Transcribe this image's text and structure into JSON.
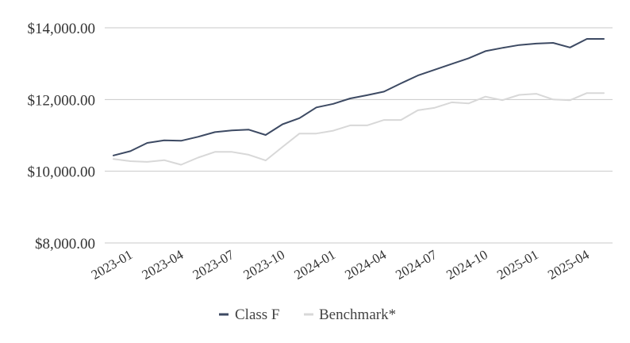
{
  "chart_data": {
    "type": "line",
    "title": "",
    "xlabel": "",
    "ylabel": "",
    "ylim": [
      8000,
      14000
    ],
    "yticks": [
      "$8,000.00",
      "$10,000.00",
      "$12,000.00",
      "$14,000.00"
    ],
    "ytick_values": [
      8000,
      10000,
      12000,
      14000
    ],
    "grid": true,
    "legend_position": "bottom",
    "x": [
      "2022-12",
      "2023-01",
      "2023-02",
      "2023-03",
      "2023-04",
      "2023-05",
      "2023-06",
      "2023-07",
      "2023-08",
      "2023-09",
      "2023-10",
      "2023-11",
      "2023-12",
      "2024-01",
      "2024-02",
      "2024-03",
      "2024-04",
      "2024-05",
      "2024-06",
      "2024-07",
      "2024-08",
      "2024-09",
      "2024-10",
      "2024-11",
      "2024-12",
      "2025-01",
      "2025-02",
      "2025-03",
      "2025-04",
      "2025-05"
    ],
    "xticks": [
      "2023-01",
      "2023-04",
      "2023-07",
      "2023-10",
      "2024-01",
      "2024-04",
      "2024-07",
      "2024-10",
      "2025-01",
      "2025-04"
    ],
    "series": [
      {
        "name": "Class F",
        "color": "#3d4a63",
        "values": [
          10440,
          10560,
          10790,
          10860,
          10850,
          10960,
          11090,
          11140,
          11160,
          11010,
          11310,
          11480,
          11780,
          11880,
          12030,
          12120,
          12220,
          12450,
          12670,
          12830,
          12990,
          13150,
          13350,
          13440,
          13520,
          13560,
          13580,
          13450,
          13690,
          13690
        ]
      },
      {
        "name": "Benchmark*",
        "color": "#d8d8d8",
        "values": [
          10340,
          10280,
          10260,
          10310,
          10180,
          10380,
          10540,
          10540,
          10460,
          10300,
          10680,
          11050,
          11050,
          11130,
          11280,
          11280,
          11430,
          11430,
          11700,
          11770,
          11920,
          11890,
          12080,
          11980,
          12130,
          12160,
          12000,
          11980,
          12180,
          12180
        ]
      }
    ]
  }
}
